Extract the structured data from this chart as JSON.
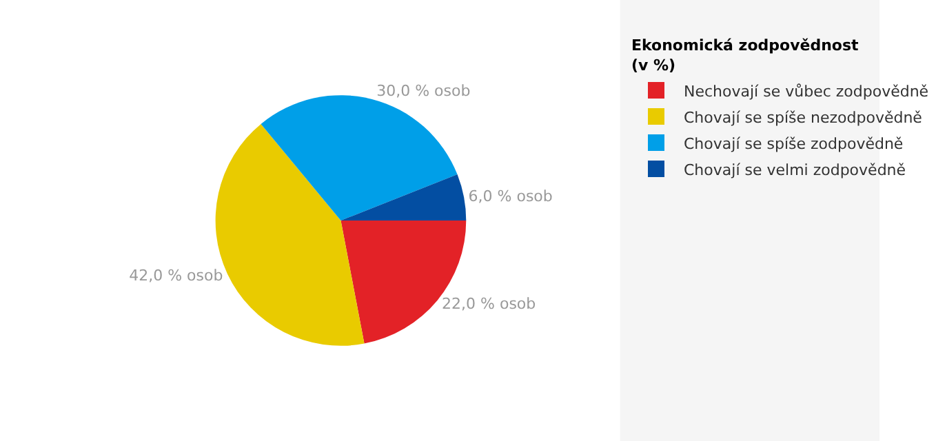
{
  "chart_data": {
    "type": "pie",
    "legend_title": "Ekonomická zodpovědnost\n(v %)",
    "categories": [
      "Nechovají se vůbec zodpovědně",
      "Chovají se spíše nezodpovědně",
      "Chovají se spíše zodpovědně",
      "Chovají se velmi zodpovědně"
    ],
    "values": [
      22.0,
      42.0,
      30.0,
      6.0
    ],
    "value_labels": [
      "22,0 % osob",
      "42,0 % osob",
      "30,0 % osob",
      "6,0 % osob"
    ],
    "colors": [
      "#e32227",
      "#e9cb00",
      "#009fe8",
      "#034ea2"
    ],
    "legend": "right"
  }
}
